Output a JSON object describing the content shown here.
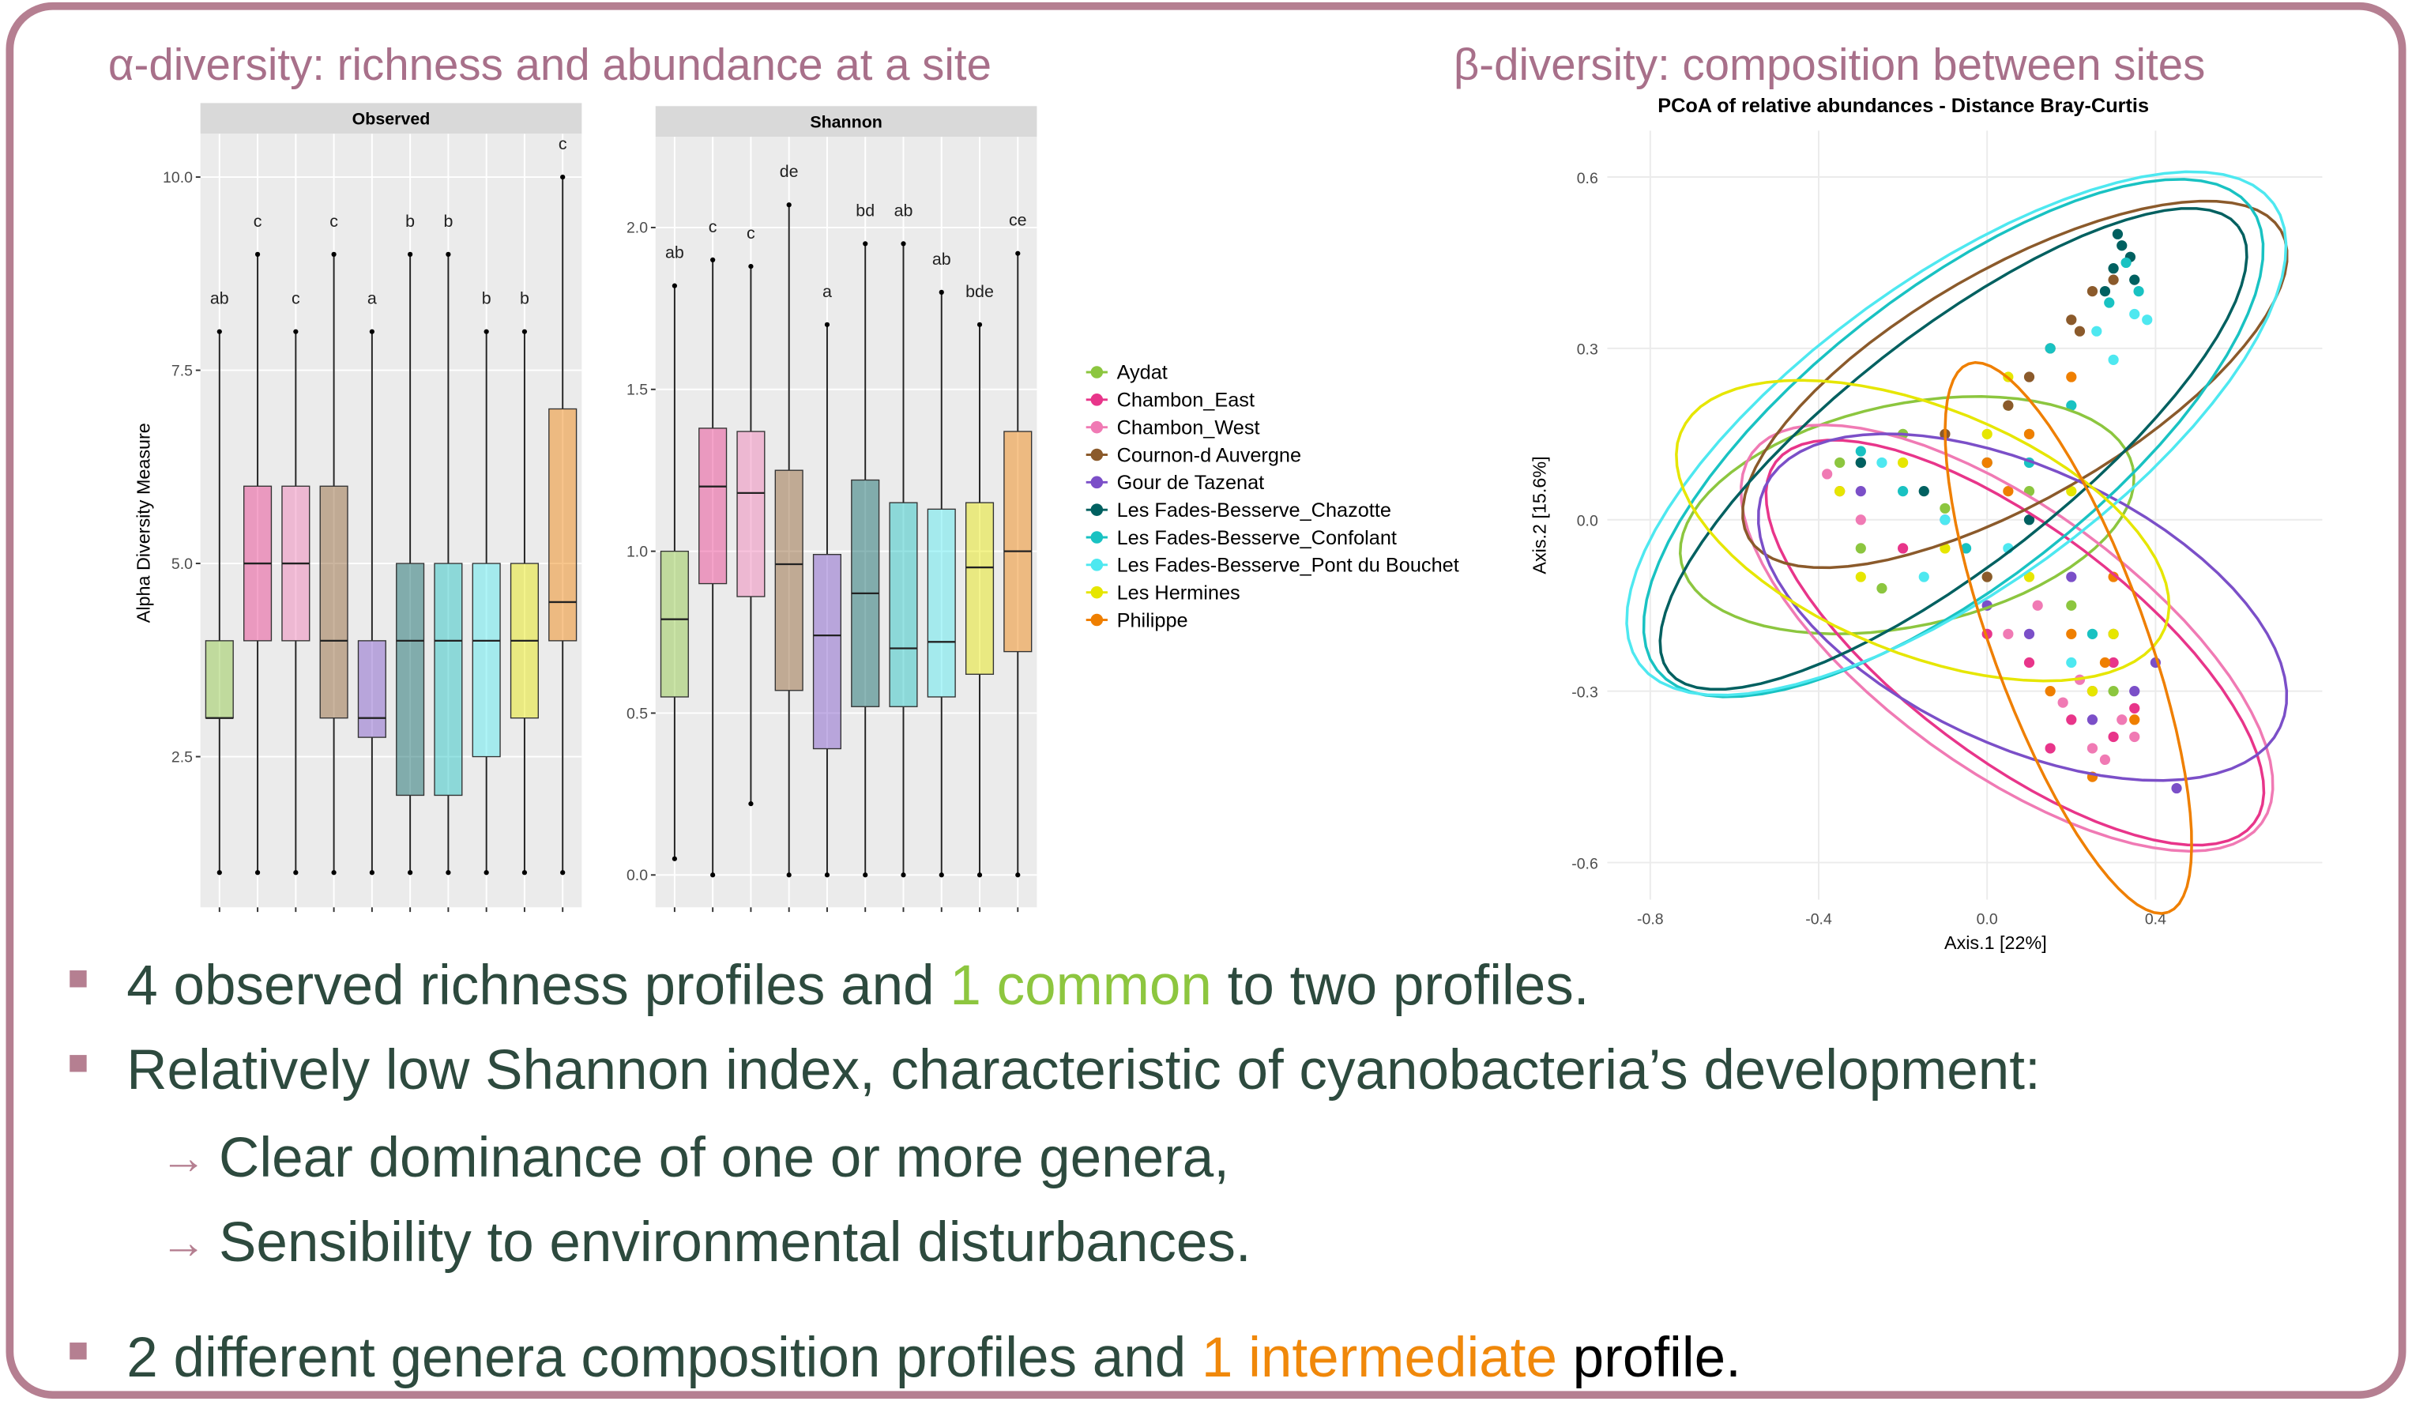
{
  "headings": {
    "alpha": "α-diversity: richness and abundance at a site",
    "beta": "β-diversity: composition between sites"
  },
  "groups": [
    {
      "name": "Aydat",
      "color": "#8cc63f"
    },
    {
      "name": "Chambon_East",
      "color": "#e8358a"
    },
    {
      "name": "Chambon_West",
      "color": "#f07ab4"
    },
    {
      "name": "Cournon-d Auvergne",
      "color": "#8b5a2b"
    },
    {
      "name": "Gour de Tazenat",
      "color": "#7b4fc8"
    },
    {
      "name": "Les Fades-Besserve_Chazotte",
      "color": "#006060"
    },
    {
      "name": "Les Fades-Besserve_Confolant",
      "color": "#19c2c2"
    },
    {
      "name": "Les Fades-Besserve_Pont du Bouchet",
      "color": "#4ee8f0"
    },
    {
      "name": "Les Hermines",
      "color": "#e6e600"
    },
    {
      "name": "Philippe",
      "color": "#ef7f00"
    }
  ],
  "ylabel": "Alpha Diversity Measure",
  "observed": {
    "type": "box",
    "title": "Observed",
    "ylim": [
      0.55,
      10.56
    ],
    "yticks": [
      2.5,
      {
        "value": 5,
        "label": "5.0"
      },
      7.5,
      {
        "value": 10,
        "label": "10.0"
      }
    ],
    "boxes": [
      {
        "low": 1,
        "q1": 3,
        "median": 3,
        "q3": 4,
        "high": 8
      },
      {
        "low": 1,
        "q1": 4,
        "median": 5,
        "q3": 6,
        "high": 9
      },
      {
        "low": 1,
        "q1": 4,
        "median": 5,
        "q3": 6,
        "high": 8
      },
      {
        "low": 1,
        "q1": 3,
        "median": 4,
        "q3": 6,
        "high": 9
      },
      {
        "low": 1,
        "q1": 2.75,
        "median": 3,
        "q3": 4,
        "high": 8
      },
      {
        "low": 1,
        "q1": 2,
        "median": 4,
        "q3": 5,
        "high": 9
      },
      {
        "low": 1,
        "q1": 2,
        "median": 4,
        "q3": 5,
        "high": 9
      },
      {
        "low": 1,
        "q1": 2.5,
        "median": 4,
        "q3": 5,
        "high": 8
      },
      {
        "low": 1,
        "q1": 3,
        "median": 4,
        "q3": 5,
        "high": 8
      },
      {
        "low": 1,
        "q1": 4,
        "median": 4.5,
        "q3": 7,
        "high": 10
      }
    ],
    "letters": [
      "ab",
      "c",
      "c",
      "c",
      "a",
      "b",
      "b",
      "b",
      "b",
      "c"
    ]
  },
  "shannon": {
    "type": "box",
    "title": "Shannon",
    "ylim": [
      -0.1,
      2.28
    ],
    "yticks": [
      {
        "value": 0,
        "label": "0.0"
      },
      0.5,
      {
        "value": 1,
        "label": "1.0"
      },
      1.5,
      {
        "value": 2,
        "label": "2.0"
      }
    ],
    "boxes": [
      {
        "low": 0.05,
        "q1": 0.55,
        "median": 0.79,
        "q3": 1.0,
        "high": 1.82
      },
      {
        "low": 0.0,
        "q1": 0.9,
        "median": 1.2,
        "q3": 1.38,
        "high": 1.9
      },
      {
        "low": 0.22,
        "q1": 0.86,
        "median": 1.18,
        "q3": 1.37,
        "high": 1.88
      },
      {
        "low": 0.0,
        "q1": 0.57,
        "median": 0.96,
        "q3": 1.25,
        "high": 2.07
      },
      {
        "low": 0.0,
        "q1": 0.39,
        "median": 0.74,
        "q3": 0.99,
        "high": 1.7
      },
      {
        "low": 0.0,
        "q1": 0.52,
        "median": 0.87,
        "q3": 1.22,
        "high": 1.95
      },
      {
        "low": 0.0,
        "q1": 0.52,
        "median": 0.7,
        "q3": 1.15,
        "high": 1.95
      },
      {
        "low": 0.0,
        "q1": 0.55,
        "median": 0.72,
        "q3": 1.13,
        "high": 1.8
      },
      {
        "low": 0.0,
        "q1": 0.62,
        "median": 0.95,
        "q3": 1.15,
        "high": 1.7
      },
      {
        "low": 0.0,
        "q1": 0.69,
        "median": 1.0,
        "q3": 1.37,
        "high": 1.92
      }
    ],
    "letters": [
      "ab",
      "c",
      "c",
      "de",
      "a",
      "bd",
      "ab",
      "ab",
      "bde",
      "ce"
    ]
  },
  "pcoa": {
    "type": "scatter",
    "title": "PCoA of relative abundances - Distance Bray-Curtis",
    "xlabel": "Axis.1   [22%]",
    "ylabel": "Axis.2   [15.6%]",
    "xlim": [
      -0.902,
      0.796
    ],
    "ylim": [
      -0.665,
      0.681
    ],
    "xticks": [
      -0.8,
      -0.4,
      {
        "value": 0,
        "label": "0.0"
      },
      0.4
    ],
    "yticks": [
      -0.6,
      -0.3,
      {
        "value": 0,
        "label": "0.0"
      },
      0.3,
      0.6
    ],
    "series": [
      {
        "x": [
          -0.35,
          -0.3,
          -0.2,
          -0.1,
          0.0,
          0.1,
          0.2,
          -0.25,
          0.05,
          0.3
        ],
        "y": [
          0.1,
          -0.05,
          0.15,
          0.02,
          -0.1,
          0.05,
          -0.15,
          -0.12,
          0.2,
          -0.3
        ],
        "ellipse": {
          "center": [
            -0.19,
            0.008
          ],
          "axis1": [
            0.536,
            0.084
          ],
          "axis2": [
            0.055,
            -0.19
          ]
        }
      },
      {
        "x": [
          0.2,
          0.3,
          0.25,
          0.1,
          -0.2,
          0.3,
          0.15,
          -0.35,
          0.0,
          0.35
        ],
        "y": [
          -0.35,
          -0.38,
          -0.3,
          -0.25,
          -0.05,
          -0.25,
          -0.4,
          0.05,
          -0.2,
          -0.33
        ],
        "ellipse": {
          "center": [
            0.066,
            -0.215
          ],
          "axis1": [
            0.568,
            -0.316
          ],
          "axis2": [
            -0.164,
            -0.161
          ]
        }
      },
      {
        "x": [
          0.25,
          0.32,
          0.18,
          0.05,
          -0.3,
          0.28,
          0.22,
          -0.38,
          0.12,
          0.35
        ],
        "y": [
          -0.4,
          -0.35,
          -0.32,
          -0.2,
          0.0,
          -0.42,
          -0.28,
          0.08,
          -0.15,
          -0.38
        ],
        "ellipse": {
          "center": [
            0.047,
            -0.207
          ],
          "axis1": [
            0.605,
            -0.324
          ],
          "axis2": [
            -0.182,
            -0.185
          ]
        }
      },
      {
        "x": [
          0.2,
          0.25,
          0.15,
          0.1,
          -0.1,
          0.3,
          0.22,
          0.05,
          -0.3,
          0.0
        ],
        "y": [
          0.35,
          0.4,
          0.3,
          0.25,
          0.15,
          0.42,
          0.33,
          0.2,
          0.1,
          -0.1
        ],
        "ellipse": {
          "center": [
            0.066,
            0.237
          ],
          "axis1": [
            0.632,
            0.269
          ],
          "axis2": [
            0.137,
            -0.175
          ]
        }
      },
      {
        "x": [
          0.3,
          0.35,
          0.2,
          0.1,
          -0.1,
          0.45,
          0.25,
          0.0,
          -0.3,
          0.4
        ],
        "y": [
          -0.2,
          -0.3,
          -0.1,
          -0.2,
          0.0,
          -0.47,
          -0.35,
          -0.15,
          0.05,
          -0.25
        ],
        "ellipse": {
          "center": [
            0.084,
            -0.153
          ],
          "axis1": [
            0.612,
            -0.21
          ],
          "axis2": [
            -0.139,
            -0.219
          ]
        }
      },
      {
        "x": [
          0.32,
          0.3,
          0.34,
          0.28,
          -0.15,
          0.0,
          0.31,
          0.35,
          -0.3,
          0.1
        ],
        "y": [
          0.48,
          0.44,
          0.46,
          0.4,
          0.05,
          0.1,
          0.5,
          0.42,
          0.1,
          0.0
        ],
        "ellipse": {
          "center": [
            -0.08,
            0.124
          ],
          "axis1": [
            0.676,
            0.39
          ],
          "axis2": [
            0.169,
            -0.159
          ]
        }
      },
      {
        "x": [
          0.33,
          0.29,
          0.2,
          -0.2,
          0.1,
          0.36,
          -0.05,
          0.25,
          -0.3,
          0.15
        ],
        "y": [
          0.45,
          0.38,
          0.2,
          0.05,
          0.1,
          0.4,
          -0.05,
          -0.2,
          0.12,
          0.3
        ],
        "ellipse": {
          "center": [
            -0.08,
            0.143
          ],
          "axis1": [
            0.704,
            0.406
          ],
          "axis2": [
            0.214,
            -0.201
          ]
        }
      },
      {
        "x": [
          0.26,
          0.35,
          -0.1,
          0.05,
          -0.25,
          0.2,
          0.3,
          -0.15,
          0.1,
          0.38
        ],
        "y": [
          0.33,
          0.36,
          0.0,
          -0.05,
          0.1,
          -0.25,
          0.28,
          -0.1,
          0.15,
          0.35
        ],
        "ellipse": {
          "center": [
            -0.073,
            0.151
          ],
          "axis1": [
            0.753,
            0.403
          ],
          "axis2": [
            0.215,
            -0.218
          ]
        }
      },
      {
        "x": [
          -0.35,
          -0.2,
          -0.1,
          0.0,
          0.1,
          0.2,
          0.3,
          -0.3,
          0.05,
          0.25
        ],
        "y": [
          0.05,
          0.1,
          -0.05,
          0.15,
          -0.1,
          0.05,
          -0.2,
          -0.1,
          0.25,
          -0.3
        ],
        "ellipse": {
          "center": [
            -0.153,
            -0.019
          ],
          "axis1": [
            0.575,
            -0.171
          ],
          "axis2": [
            -0.109,
            -0.2
          ]
        }
      },
      {
        "x": [
          0.15,
          0.2,
          0.25,
          0.3,
          0.1,
          0.35,
          0.05,
          0.2,
          0.28,
          0.0
        ],
        "y": [
          -0.3,
          -0.2,
          -0.45,
          -0.1,
          0.15,
          -0.35,
          0.05,
          0.25,
          -0.25,
          0.1
        ],
        "ellipse": {
          "center": [
            0.193,
            -0.207
          ],
          "axis1": [
            0.237,
            -0.48
          ],
          "axis2": [
            -0.172,
            -0.046
          ]
        }
      }
    ]
  },
  "bullets": [
    {
      "level": 1,
      "parts": [
        {
          "text": "4 observed richness profiles and "
        },
        {
          "text": "1 common",
          "color": "#8dc63f"
        },
        {
          "text": " to two profiles."
        }
      ]
    },
    {
      "level": 1,
      "parts": [
        {
          "text": "Relatively low Shannon index, characteristic of cyanobacteria’s development:"
        }
      ]
    },
    {
      "level": 2,
      "parts": [
        {
          "text": "Clear dominance of one or more genera,"
        }
      ]
    },
    {
      "level": 2,
      "parts": [
        {
          "text": "Sensibility to environmental disturbances."
        }
      ]
    },
    {
      "level": 1,
      "parts": [
        {
          "text": "2 different genera composition profiles and "
        },
        {
          "text": "1 intermediate",
          "color": "#f0880a"
        },
        {
          "text": " profile.",
          "color": "#000000"
        }
      ]
    }
  ]
}
